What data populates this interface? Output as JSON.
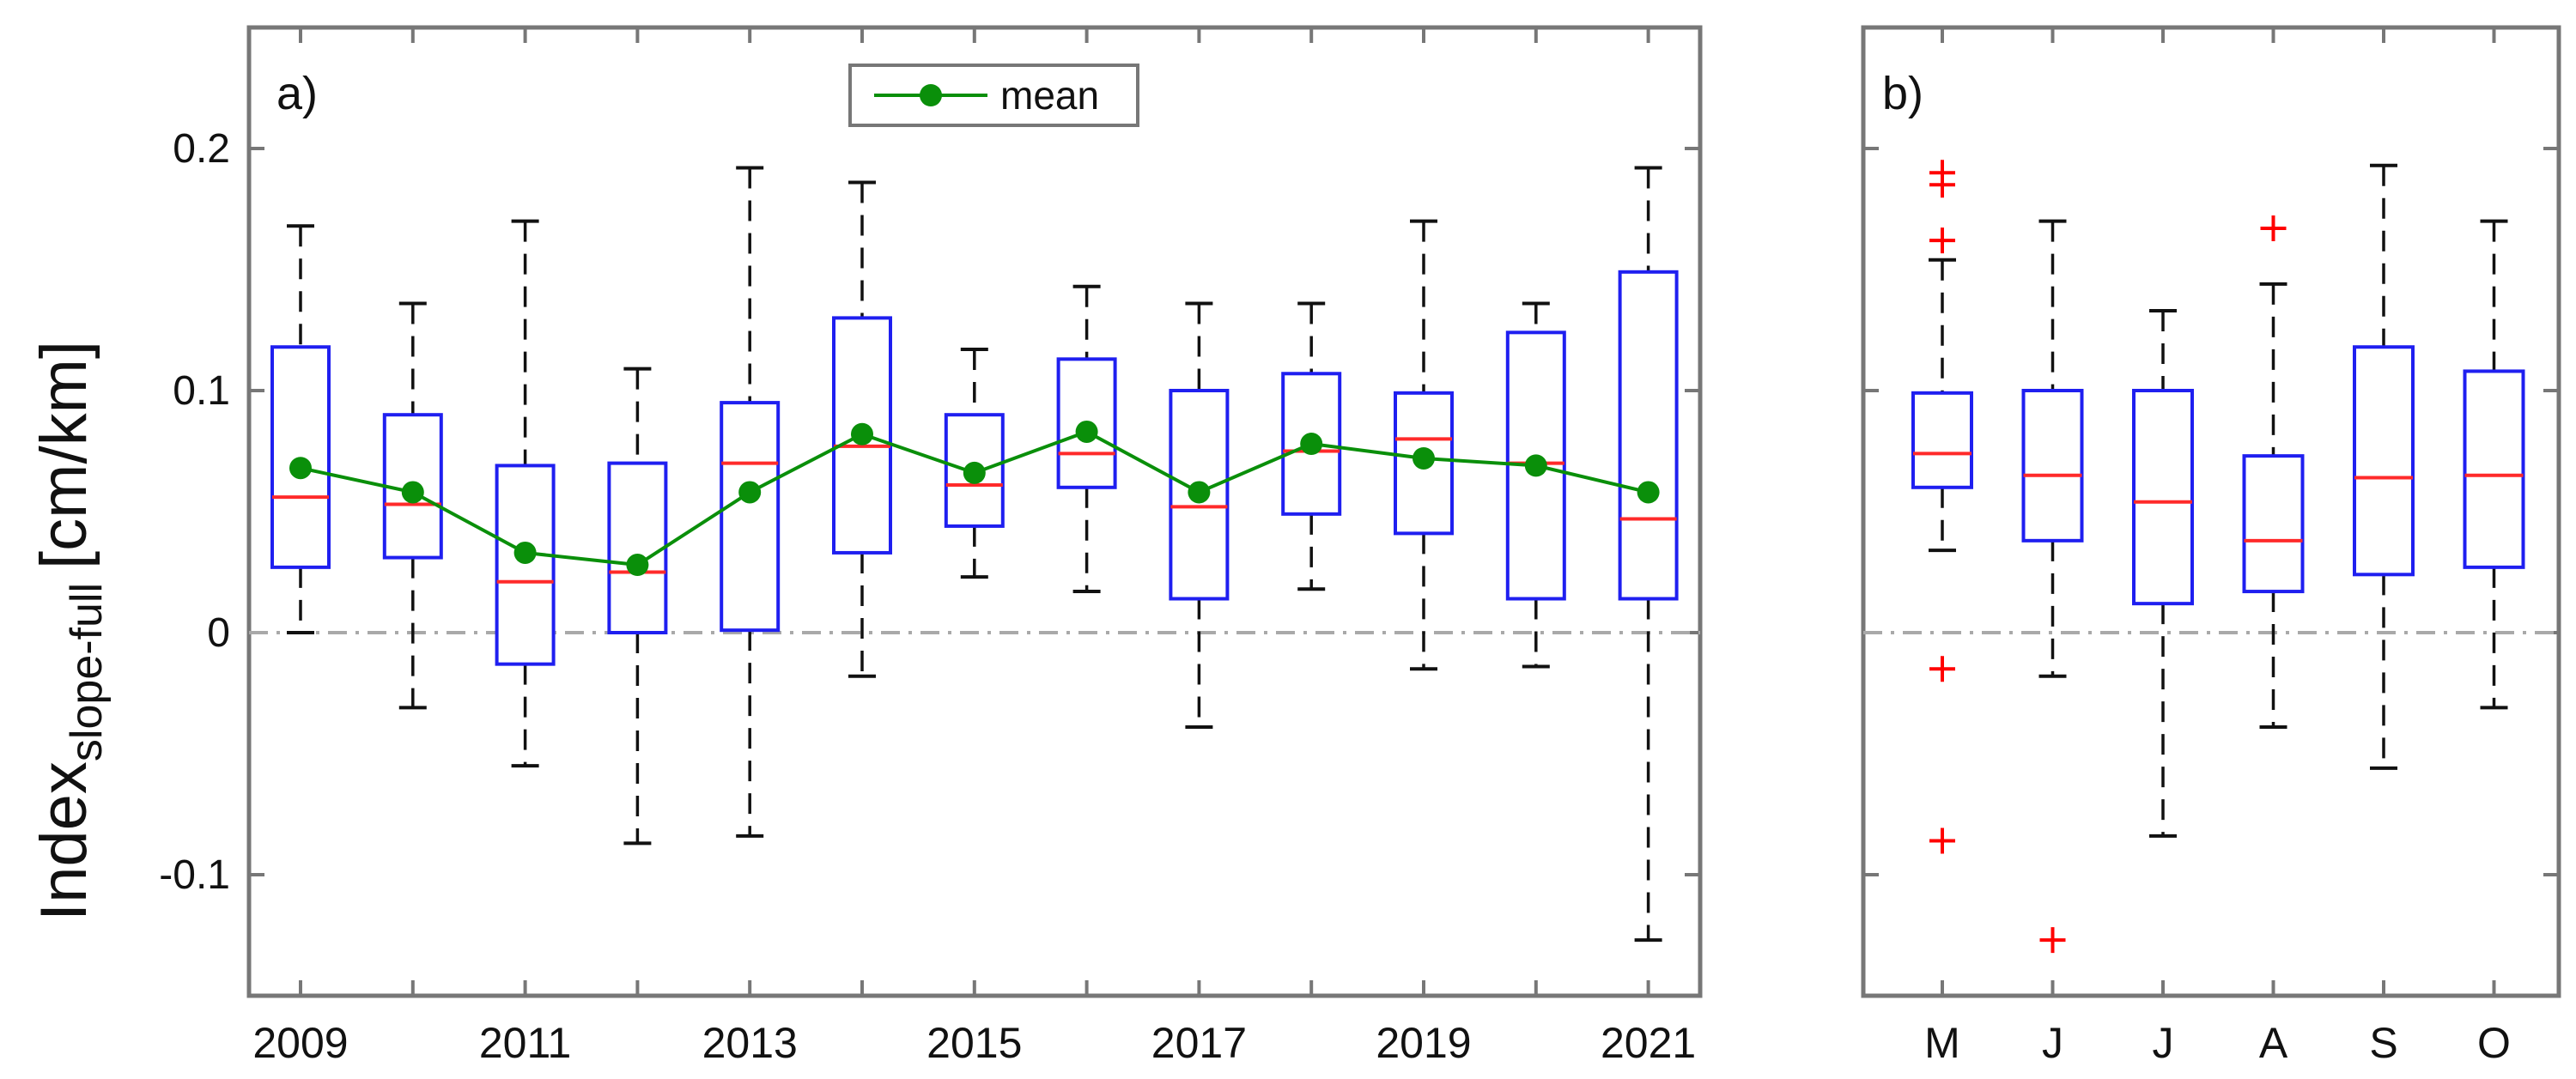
{
  "ylabel_main": "Index",
  "ylabel_sub": "slope-full",
  "ylabel_unit": "[cm/km]",
  "colors": {
    "box": "#1f1ff0",
    "median": "#ff2a2a",
    "mean": "#0a8f0a",
    "whisker": "#111111",
    "outlier": "#ff0000",
    "zero_line": "#a9a9a9",
    "axes": "#777777"
  },
  "chart_data": [
    {
      "type": "box",
      "panel_label": "a)",
      "ylim": [
        -0.15,
        0.25
      ],
      "yticks": [
        -0.1,
        0,
        0.1,
        0.2
      ],
      "ytick_labels": [
        "-0.1",
        "0",
        "0.1",
        "0.2"
      ],
      "grid": false,
      "zero_line": "dash-dot at 0",
      "legend": {
        "position": "top-center",
        "entries": [
          "mean"
        ]
      },
      "xtick_labels": [
        "2009",
        "2011",
        "2013",
        "2015",
        "2017",
        "2019",
        "2021"
      ],
      "categories": [
        "2009",
        "2010",
        "2011",
        "2012",
        "2013",
        "2014",
        "2015",
        "2016",
        "2017",
        "2018",
        "2019",
        "2020",
        "2021"
      ],
      "series": [
        {
          "category": "2009",
          "whisker_low": 0.0,
          "q1": 0.027,
          "median": 0.056,
          "q3": 0.118,
          "whisker_high": 0.168,
          "mean": 0.068
        },
        {
          "category": "2010",
          "whisker_low": -0.031,
          "q1": 0.031,
          "median": 0.053,
          "q3": 0.09,
          "whisker_high": 0.136,
          "mean": 0.058
        },
        {
          "category": "2011",
          "whisker_low": -0.055,
          "q1": -0.013,
          "median": 0.021,
          "q3": 0.069,
          "whisker_high": 0.17,
          "mean": 0.033
        },
        {
          "category": "2012",
          "whisker_low": -0.087,
          "q1": 0.0,
          "median": 0.025,
          "q3": 0.07,
          "whisker_high": 0.109,
          "mean": 0.028
        },
        {
          "category": "2013",
          "whisker_low": -0.084,
          "q1": 0.001,
          "median": 0.07,
          "q3": 0.095,
          "whisker_high": 0.192,
          "mean": 0.058
        },
        {
          "category": "2014",
          "whisker_low": -0.018,
          "q1": 0.033,
          "median": 0.077,
          "q3": 0.13,
          "whisker_high": 0.186,
          "mean": 0.082
        },
        {
          "category": "2015",
          "whisker_low": 0.023,
          "q1": 0.044,
          "median": 0.061,
          "q3": 0.09,
          "whisker_high": 0.117,
          "mean": 0.066
        },
        {
          "category": "2016",
          "whisker_low": 0.017,
          "q1": 0.06,
          "median": 0.074,
          "q3": 0.113,
          "whisker_high": 0.143,
          "mean": 0.083
        },
        {
          "category": "2017",
          "whisker_low": -0.039,
          "q1": 0.014,
          "median": 0.052,
          "q3": 0.1,
          "whisker_high": 0.136,
          "mean": 0.058
        },
        {
          "category": "2018",
          "whisker_low": 0.018,
          "q1": 0.049,
          "median": 0.075,
          "q3": 0.107,
          "whisker_high": 0.136,
          "mean": 0.078
        },
        {
          "category": "2019",
          "whisker_low": -0.015,
          "q1": 0.041,
          "median": 0.08,
          "q3": 0.099,
          "whisker_high": 0.17,
          "mean": 0.072
        },
        {
          "category": "2020",
          "whisker_low": -0.014,
          "q1": 0.014,
          "median": 0.07,
          "q3": 0.124,
          "whisker_high": 0.136,
          "mean": 0.069
        },
        {
          "category": "2021",
          "whisker_low": -0.127,
          "q1": 0.014,
          "median": 0.047,
          "q3": 0.149,
          "whisker_high": 0.192,
          "mean": 0.058
        }
      ]
    },
    {
      "type": "box",
      "panel_label": "b)",
      "ylim": [
        -0.15,
        0.25
      ],
      "yticks": [
        -0.1,
        0,
        0.1,
        0.2
      ],
      "grid": false,
      "zero_line": "dash-dot at 0",
      "categories": [
        "M",
        "J",
        "J",
        "A",
        "S",
        "O"
      ],
      "series": [
        {
          "category": "M",
          "whisker_low": 0.034,
          "q1": 0.06,
          "median": 0.074,
          "q3": 0.099,
          "whisker_high": 0.154,
          "outliers": [
            0.19,
            0.185,
            0.162,
            -0.015,
            -0.086
          ]
        },
        {
          "category": "J",
          "whisker_low": -0.018,
          "q1": 0.038,
          "median": 0.065,
          "q3": 0.1,
          "whisker_high": 0.17,
          "outliers": [
            -0.127
          ]
        },
        {
          "category": "J",
          "whisker_low": -0.084,
          "q1": 0.012,
          "median": 0.054,
          "q3": 0.1,
          "whisker_high": 0.133,
          "outliers": []
        },
        {
          "category": "A",
          "whisker_low": -0.039,
          "q1": 0.017,
          "median": 0.038,
          "q3": 0.073,
          "whisker_high": 0.144,
          "outliers": [
            0.167
          ]
        },
        {
          "category": "S",
          "whisker_low": -0.056,
          "q1": 0.024,
          "median": 0.064,
          "q3": 0.118,
          "whisker_high": 0.193,
          "outliers": []
        },
        {
          "category": "O",
          "whisker_low": -0.031,
          "q1": 0.027,
          "median": 0.065,
          "q3": 0.108,
          "whisker_high": 0.17,
          "outliers": []
        }
      ]
    }
  ]
}
